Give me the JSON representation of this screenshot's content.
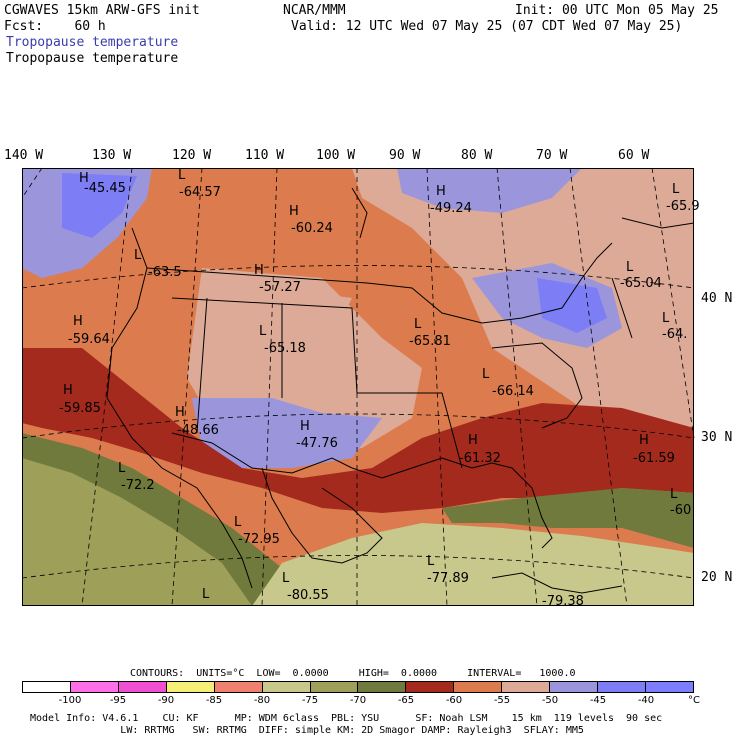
{
  "header": {
    "model": "CGWAVES 15km ARW-GFS init",
    "forecast": "Fcst:    60 h",
    "org": "NCAR/MMM",
    "init": "Init: 00 UTC Mon 05 May 25",
    "valid": "Valid: 12 UTC Wed 07 May 25 (07 CDT Wed 07 May 25)",
    "field1": "Tropopause temperature",
    "field2": "Tropopause temperature"
  },
  "lon_labels": [
    "140 W",
    "130 W",
    "120 W",
    "110 W",
    "100 W",
    "90 W",
    "80 W",
    "70 W",
    "60 W"
  ],
  "lat_labels": [
    "40 N",
    "30 N",
    "20 N"
  ],
  "centers": [
    {
      "type": "H",
      "value": "-45.45"
    },
    {
      "type": "L",
      "value": "-64.57"
    },
    {
      "type": "H",
      "value": "-60.24"
    },
    {
      "type": "H",
      "value": "-49.24"
    },
    {
      "type": "L",
      "value": "-65.9"
    },
    {
      "type": "L",
      "value": "-63.5"
    },
    {
      "type": "H",
      "value": "-57.27"
    },
    {
      "type": "L",
      "value": "-65.04"
    },
    {
      "type": "H",
      "value": "-59.64"
    },
    {
      "type": "L",
      "value": "-65.18"
    },
    {
      "type": "L",
      "value": "-65.81"
    },
    {
      "type": "L",
      "value": "-64."
    },
    {
      "type": "H",
      "value": "-59.85"
    },
    {
      "type": "H",
      "value": "-48.66"
    },
    {
      "type": "H",
      "value": "-47.76"
    },
    {
      "type": "L",
      "value": "-66.14"
    },
    {
      "type": "H",
      "value": "-61.32"
    },
    {
      "type": "H",
      "value": "-61.59"
    },
    {
      "type": "L",
      "value": "-72.2"
    },
    {
      "type": "L",
      "value": "-72.95"
    },
    {
      "type": "L",
      "value": "-60"
    },
    {
      "type": "L",
      "value": "-77.89"
    },
    {
      "type": "L",
      "value": "-80.55"
    },
    {
      "type": "L",
      "value": "-79.38"
    }
  ],
  "contours": {
    "line": "CONTOURS:  UNITS=°C  LOW=  0.0000     HIGH=  0.0000     INTERVAL=   1000.0"
  },
  "colorbar": {
    "colors": [
      "#ffffff",
      "#ff6fe8",
      "#ef50d2",
      "#f5f075",
      "#f08070",
      "#c8c88c",
      "#9ea05a",
      "#6f7a3c",
      "#a52a1e",
      "#dc7c4e",
      "#dcaa96",
      "#9b96dc",
      "#7d7df5",
      "#7d7dff"
    ],
    "ticks": [
      "-100",
      "-95",
      "-90",
      "-85",
      "-80",
      "-75",
      "-70",
      "-65",
      "-60",
      "-55",
      "-50",
      "-45",
      "-40",
      "°C"
    ]
  },
  "footer": {
    "line1": "Model Info: V4.6.1    CU: KF      MP: WDM 6class  PBL: YSU      SF: Noah LSM    15 km  119 levels  90 sec",
    "line2": "               LW: RRTMG   SW: RRTMG  DIFF: simple KM: 2D Smagor DAMP: Rayleigh3  SFLAY: MM5"
  }
}
